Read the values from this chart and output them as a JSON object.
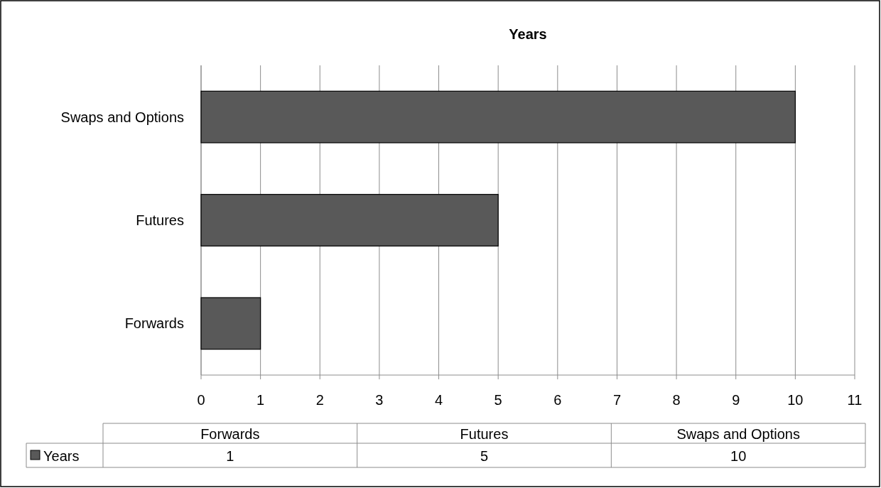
{
  "chart_data": {
    "type": "bar",
    "orientation": "horizontal",
    "title": "Years",
    "categories": [
      "Swaps and Options",
      "Futures",
      "Forwards"
    ],
    "series": [
      {
        "name": "Years",
        "color": "#595959",
        "values": [
          10,
          5,
          1
        ]
      }
    ],
    "xlim": [
      0,
      11
    ],
    "xticks": [
      0,
      1,
      2,
      3,
      4,
      5,
      6,
      7,
      8,
      9,
      10,
      11
    ],
    "grid": "x",
    "legend": "bottom",
    "annotations": [
      "1",
      "5",
      "10"
    ]
  }
}
